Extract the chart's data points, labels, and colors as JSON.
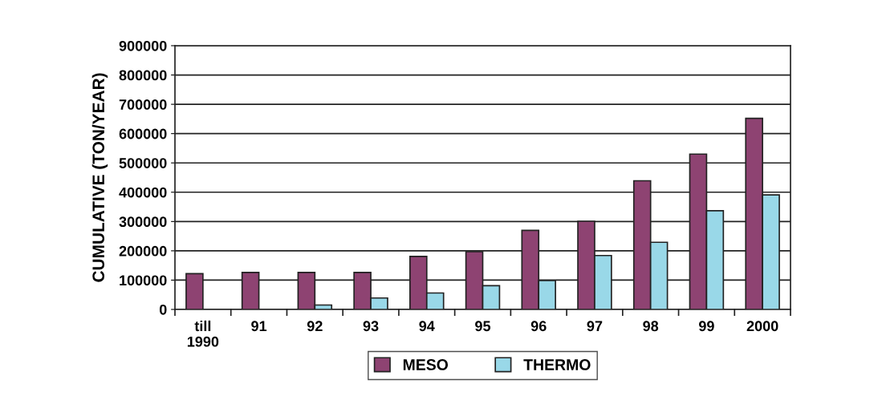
{
  "chart_data": {
    "type": "bar",
    "ylabel": "CUMULATIVE (TON/YEAR)",
    "categories": [
      "till\n1990",
      "91",
      "92",
      "93",
      "94",
      "95",
      "96",
      "97",
      "98",
      "99",
      "2000"
    ],
    "series": [
      {
        "name": "MESO",
        "color": "#8e4372",
        "values": [
          122000,
          126000,
          126000,
          126000,
          181000,
          197000,
          270000,
          301000,
          439000,
          530000,
          652000
        ]
      },
      {
        "name": "THERMO",
        "color": "#99d8e8",
        "values": [
          null,
          null,
          15000,
          39000,
          56000,
          81000,
          99000,
          184000,
          229000,
          337000,
          391000
        ]
      }
    ],
    "ylim": [
      0,
      900000
    ],
    "yticks": [
      0,
      100000,
      200000,
      300000,
      400000,
      500000,
      600000,
      700000,
      800000,
      900000
    ],
    "grid": "y",
    "legend": "bottom"
  }
}
